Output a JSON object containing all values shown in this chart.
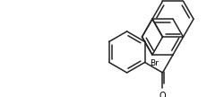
{
  "bg_color": "#ffffff",
  "line_color": "#222222",
  "line_width": 1.1,
  "text_color": "#000000",
  "label_O": "O",
  "label_Br": "Br",
  "font_size_O": 7.0,
  "font_size_Br": 6.5,
  "figsize": [
    2.51,
    1.08
  ],
  "dpi": 100
}
